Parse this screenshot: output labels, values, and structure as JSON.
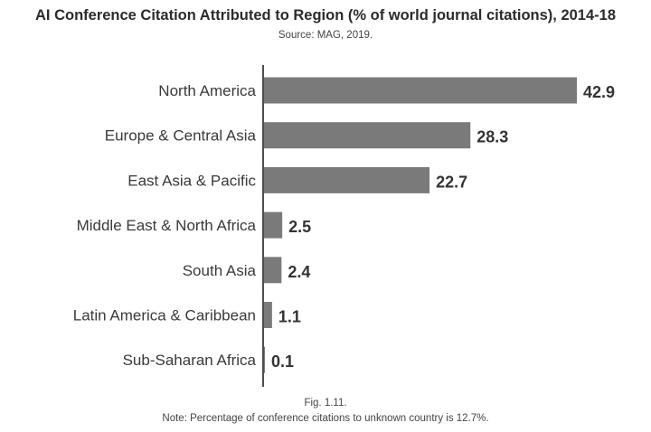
{
  "chart_data": {
    "type": "bar",
    "orientation": "horizontal",
    "title": "AI Conference Citation Attributed to Region (% of world journal citations), 2014-18",
    "subtitle": "Source: MAG, 2019.",
    "categories": [
      "North America",
      "Europe & Central Asia",
      "East Asia & Pacific",
      "Middle East & North Africa",
      "South Asia",
      "Latin America & Caribbean",
      "Sub-Saharan Africa"
    ],
    "values": [
      42.9,
      28.3,
      22.7,
      2.5,
      2.4,
      1.1,
      0.1
    ],
    "data_labels": [
      "42.9",
      "28.3",
      "22.7",
      "2.5",
      "2.4",
      "1.1",
      "0.1"
    ],
    "xlim": [
      0,
      42.9
    ],
    "grid": false,
    "legend": "none",
    "bar_color": "#7a7a7a",
    "axis_color": "#222222"
  },
  "footer": {
    "fig": "Fig. 1.11.",
    "note": "Note: Percentage of conference citations to unknown country is 12.7%."
  }
}
